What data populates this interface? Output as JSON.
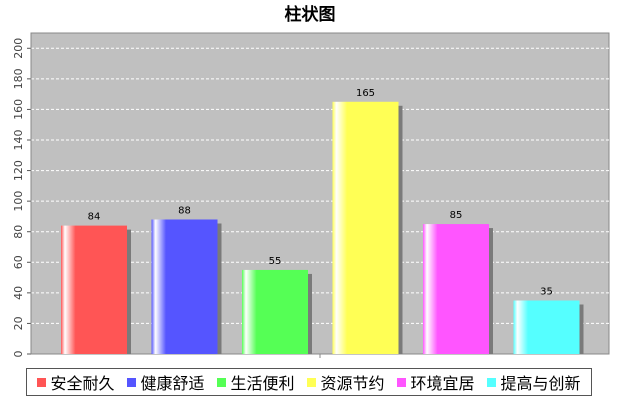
{
  "chart_data": {
    "type": "bar",
    "title": "柱状图",
    "categories": [
      "安全耐久",
      "健康舒适",
      "生活便利",
      "资源节约",
      "环境宜居",
      "提高与创新"
    ],
    "values": [
      84,
      88,
      55,
      165,
      85,
      35
    ],
    "colors": [
      "#ff5555",
      "#5555ff",
      "#55ff55",
      "#ffff55",
      "#ff55ff",
      "#55ffff"
    ],
    "ylim": [
      0,
      210
    ],
    "yticks": [
      0,
      20,
      40,
      60,
      80,
      100,
      120,
      140,
      160,
      180,
      200
    ],
    "grid": true,
    "legend_position": "bottom",
    "background": "#c0c0c0"
  }
}
